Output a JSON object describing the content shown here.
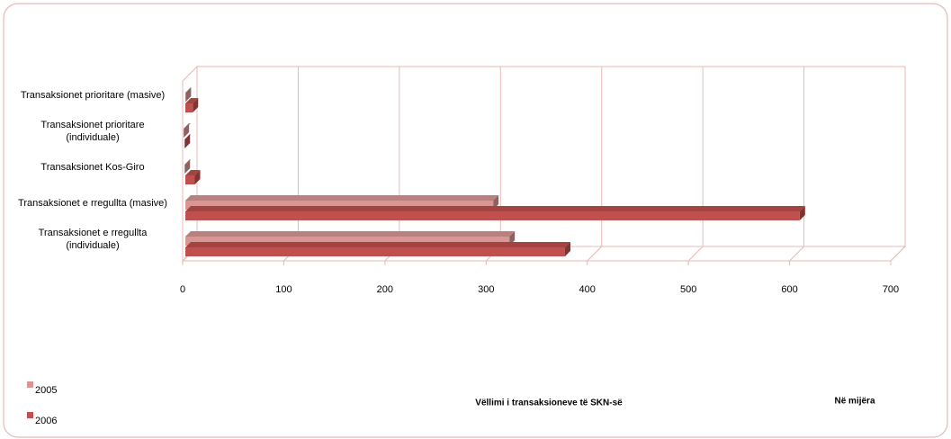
{
  "chart_data": {
    "type": "bar3d_horizontal",
    "title": "Vëllimi i transaksioneve të SKN-së",
    "annotation": "Në mijëra",
    "categories": [
      "Transaksionet prioritare (masive)",
      "Transaksionet prioritare (individuale)",
      "Transaksionet Kos-Giro",
      "Transaksionet e rregullta (masive)",
      "Transaksionet e rregullta (individuale)"
    ],
    "series": [
      {
        "name": "2005",
        "color": "#d99694",
        "values": [
          3,
          1,
          2,
          307,
          323
        ]
      },
      {
        "name": "2006",
        "color": "#c0504d",
        "values": [
          10,
          2,
          12,
          610,
          378
        ]
      }
    ],
    "xlim": [
      0,
      700
    ],
    "xticks": [
      0,
      100,
      200,
      300,
      400,
      500,
      600,
      700
    ],
    "grid": true
  }
}
